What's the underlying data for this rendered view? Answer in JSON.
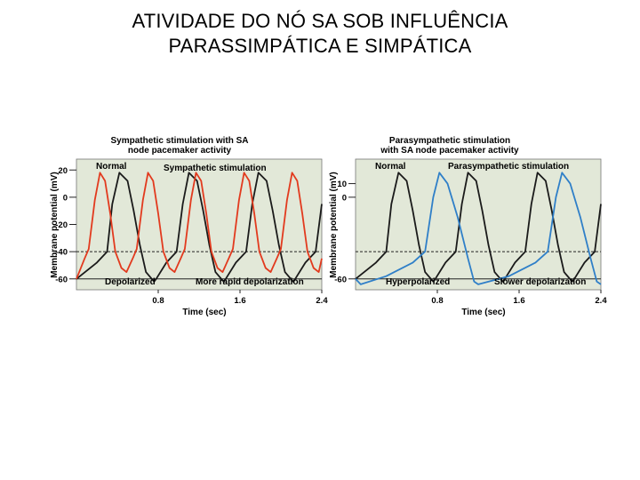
{
  "slide": {
    "title_line1": "ATIVIDADE DO NÓ SA SOB INFLUÊNCIA",
    "title_line2": "PARASSIMPÁTICA E SIMPÁTICA"
  },
  "chart_data": [
    {
      "type": "line",
      "title": "Sympathetic stimulation with SA node pacemaker activity",
      "title_lines": [
        "Sympathetic stimulation with SA",
        "node pacemaker activity"
      ],
      "xlabel": "Time (sec)",
      "ylabel": "Membrane potential (mV)",
      "xlim": [
        0,
        2.4
      ],
      "ylim": [
        -68,
        28
      ],
      "xticks": [
        0.8,
        1.6,
        2.4
      ],
      "yticks": [
        20,
        0,
        -20,
        -40,
        -60
      ],
      "xtick_labels": [
        "0.8",
        "1.6",
        "2.4"
      ],
      "ytick_labels": [
        "20",
        "0",
        "-20",
        "-40",
        "-60"
      ],
      "threshold": -40,
      "background": "#e2e8d8",
      "series": [
        {
          "name": "Normal",
          "color": "#1a1a1a",
          "x": [
            0,
            0.2,
            0.3,
            0.35,
            0.42,
            0.5,
            0.56,
            0.62,
            0.68,
            0.76,
            0.78,
            0.88,
            0.98,
            1.04,
            1.1,
            1.18,
            1.24,
            1.3,
            1.36,
            1.44,
            1.46,
            1.56,
            1.66,
            1.72,
            1.78,
            1.86,
            1.92,
            1.98,
            2.04,
            2.12,
            2.14,
            2.24,
            2.34,
            2.4
          ],
          "y": [
            -60,
            -48,
            -40,
            -5,
            18,
            12,
            -10,
            -35,
            -55,
            -62,
            -60,
            -48,
            -40,
            -5,
            18,
            12,
            -10,
            -35,
            -55,
            -62,
            -60,
            -48,
            -40,
            -5,
            18,
            12,
            -10,
            -35,
            -55,
            -62,
            -60,
            -48,
            -40,
            -5
          ]
        },
        {
          "name": "Sympathetic stimulation",
          "color": "#e23a1e",
          "x": [
            0,
            0.08,
            0.12,
            0.18,
            0.23,
            0.28,
            0.33,
            0.38,
            0.44,
            0.49,
            0.55,
            0.59,
            0.65,
            0.7,
            0.75,
            0.8,
            0.85,
            0.91,
            0.96,
            1.02,
            1.06,
            1.12,
            1.17,
            1.22,
            1.27,
            1.32,
            1.38,
            1.43,
            1.49,
            1.53,
            1.59,
            1.64,
            1.69,
            1.74,
            1.79,
            1.85,
            1.9,
            1.96,
            2.0,
            2.06,
            2.11,
            2.16,
            2.21,
            2.26,
            2.32,
            2.37,
            2.4
          ],
          "y": [
            -60,
            -45,
            -38,
            -2,
            18,
            12,
            -12,
            -40,
            -52,
            -55,
            -45,
            -38,
            -2,
            18,
            12,
            -12,
            -40,
            -52,
            -55,
            -45,
            -38,
            -2,
            18,
            12,
            -12,
            -40,
            -52,
            -55,
            -45,
            -38,
            -2,
            18,
            12,
            -12,
            -40,
            -52,
            -55,
            -45,
            -38,
            -2,
            18,
            12,
            -12,
            -40,
            -52,
            -55,
            -45
          ]
        }
      ],
      "annotations": [
        "Normal",
        "Sympathetic stimulation",
        "Depolarized",
        "More rapid depolarization"
      ]
    },
    {
      "type": "line",
      "title": "Parasympathetic stimulation with SA node pacemaker activity",
      "title_lines": [
        "Parasympathetic stimulation",
        "with SA node pacemaker activity"
      ],
      "xlabel": "Time (sec)",
      "ylabel": "Membrane potential (mV)",
      "xlim": [
        0,
        2.4
      ],
      "ylim": [
        -68,
        28
      ],
      "xticks": [
        0.8,
        1.6,
        2.4
      ],
      "yticks": [
        10,
        0,
        -60
      ],
      "xtick_labels": [
        "0.8",
        "1.6",
        "2.4"
      ],
      "ytick_labels": [
        "10",
        "0",
        "-60"
      ],
      "threshold": -40,
      "background": "#e2e8d8",
      "series": [
        {
          "name": "Normal",
          "color": "#1a1a1a",
          "x": [
            0,
            0.2,
            0.3,
            0.35,
            0.42,
            0.5,
            0.56,
            0.62,
            0.68,
            0.76,
            0.78,
            0.88,
            0.98,
            1.04,
            1.1,
            1.18,
            1.24,
            1.3,
            1.36,
            1.44,
            1.46,
            1.56,
            1.66,
            1.72,
            1.78,
            1.86,
            1.92,
            1.98,
            2.04,
            2.12,
            2.14,
            2.24,
            2.34,
            2.4
          ],
          "y": [
            -60,
            -48,
            -40,
            -5,
            18,
            12,
            -10,
            -35,
            -55,
            -62,
            -60,
            -48,
            -40,
            -5,
            18,
            12,
            -10,
            -35,
            -55,
            -62,
            -60,
            -48,
            -40,
            -5,
            18,
            12,
            -10,
            -35,
            -55,
            -62,
            -60,
            -48,
            -40,
            -5
          ]
        },
        {
          "name": "Parasympathetic stimulation",
          "color": "#2f7fc8",
          "x": [
            0,
            0.05,
            0.3,
            0.56,
            0.68,
            0.76,
            0.82,
            0.9,
            1.0,
            1.1,
            1.16,
            1.2,
            1.5,
            1.76,
            1.88,
            1.96,
            2.02,
            2.1,
            2.2,
            2.3,
            2.36,
            2.4
          ],
          "y": [
            -60,
            -64,
            -58,
            -48,
            -40,
            0,
            18,
            10,
            -15,
            -45,
            -62,
            -64,
            -58,
            -48,
            -40,
            0,
            18,
            10,
            -15,
            -45,
            -62,
            -64
          ]
        }
      ],
      "annotations": [
        "Normal",
        "Parasympathetic stimulation",
        "Hyperpolarized",
        "Slower depolarization"
      ]
    }
  ]
}
